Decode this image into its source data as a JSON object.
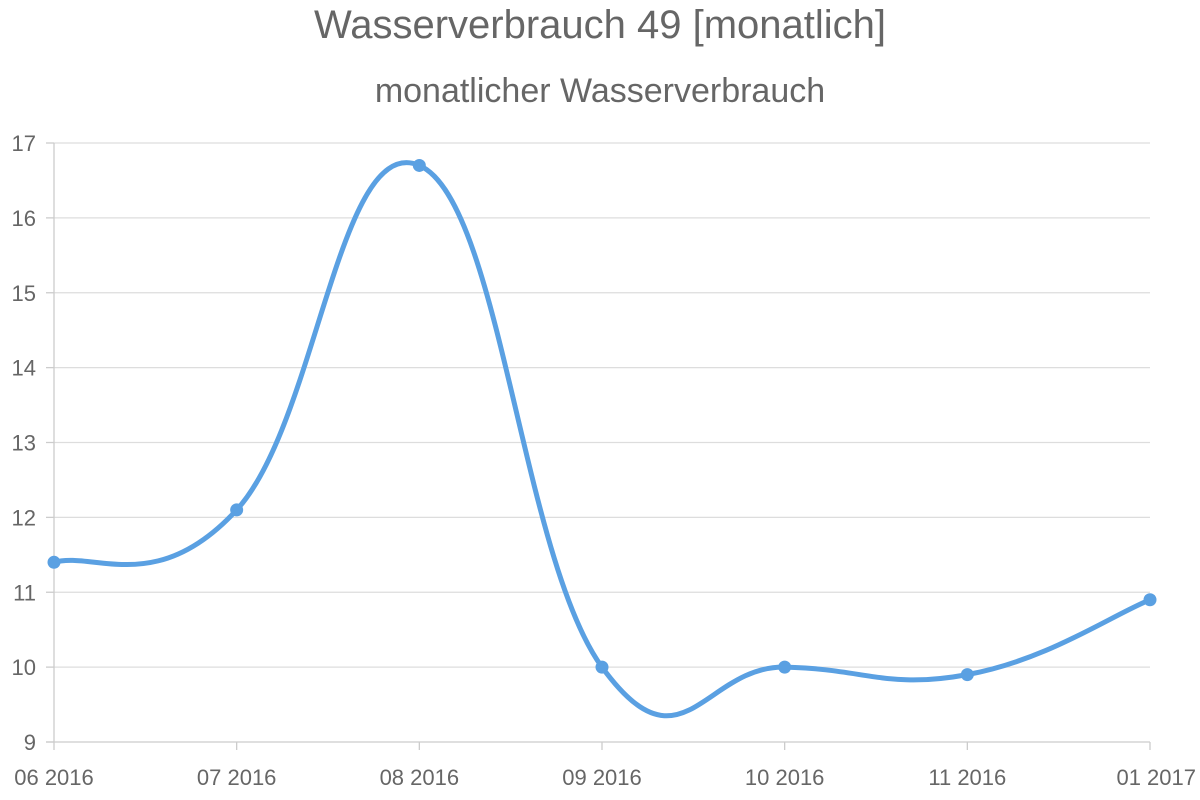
{
  "chart_data": {
    "type": "line",
    "title": "Wasserverbrauch 49 [monatlich]",
    "subtitle": "monatlicher Wasserverbrauch",
    "xlabel": "",
    "ylabel": "",
    "categories": [
      "06 2016",
      "07 2016",
      "08 2016",
      "09 2016",
      "10 2016",
      "11 2016",
      "01 2017"
    ],
    "series": [
      {
        "values": [
          11.4,
          12.1,
          16.7,
          10.0,
          10.0,
          9.9,
          10.9
        ],
        "color": "#5aa0e2"
      }
    ],
    "ylim": [
      9,
      17
    ],
    "yticks": [
      "9",
      "10",
      "11",
      "12",
      "13",
      "14",
      "15",
      "16",
      "17"
    ],
    "grid": true,
    "smooth": true,
    "legend": "none"
  }
}
